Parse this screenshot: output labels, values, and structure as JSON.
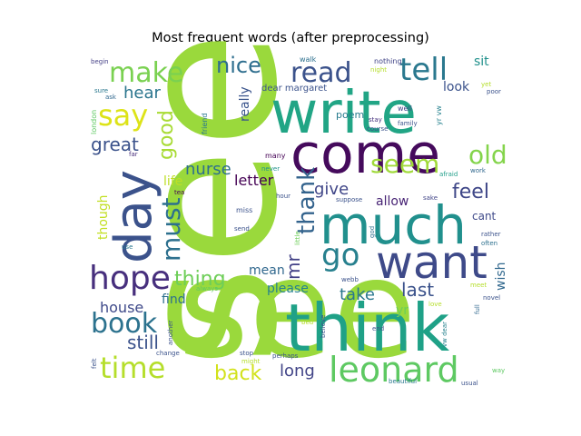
{
  "chart_data": {
    "type": "wordcloud",
    "title": "Most frequent words (after preprocessing)",
    "words": [
      {
        "text": "see",
        "color": "#9ad93c",
        "rot": -90
      },
      {
        "text": "see",
        "color": "#9ad93c",
        "rot": 0
      },
      {
        "text": "write",
        "color": "#21a585",
        "rot": 0
      },
      {
        "text": "think",
        "color": "#1fa187",
        "rot": 0
      },
      {
        "text": "come",
        "color": "#450a5c",
        "rot": 0
      },
      {
        "text": "much",
        "color": "#21908d",
        "rot": 0
      },
      {
        "text": "day",
        "color": "#3b528b",
        "rot": -90
      },
      {
        "text": "want",
        "color": "#3e4a89",
        "rot": 0
      },
      {
        "text": "leonard",
        "color": "#5ec962",
        "rot": 0
      },
      {
        "text": "hope",
        "color": "#472f7d",
        "rot": 0
      },
      {
        "text": "tell",
        "color": "#2a788e",
        "rot": 0
      },
      {
        "text": "read",
        "color": "#3b528b",
        "rot": 0
      },
      {
        "text": "make",
        "color": "#7ad151",
        "rot": 0
      },
      {
        "text": "say",
        "color": "#dde318",
        "rot": 0
      },
      {
        "text": "book",
        "color": "#2c728e",
        "rot": 0
      },
      {
        "text": "time",
        "color": "#b5de2b",
        "rot": 0
      },
      {
        "text": "go",
        "color": "#27808e",
        "rot": 0
      },
      {
        "text": "old",
        "color": "#84d44b",
        "rot": 0
      },
      {
        "text": "seem",
        "color": "#a0da39",
        "rot": 0
      },
      {
        "text": "thank",
        "color": "#33638d",
        "rot": -90
      },
      {
        "text": "must",
        "color": "#2d708e",
        "rot": -90
      },
      {
        "text": "nice",
        "color": "#2e6e8e",
        "rot": 0
      },
      {
        "text": "great",
        "color": "#3b528b",
        "rot": 0
      },
      {
        "text": "feel",
        "color": "#3f4788",
        "rot": 0
      },
      {
        "text": "good",
        "color": "#a8db34",
        "rot": -90
      },
      {
        "text": "hear",
        "color": "#2b758e",
        "rot": 0
      },
      {
        "text": "thing",
        "color": "#6ece58",
        "rot": 0
      },
      {
        "text": "nurse",
        "color": "#2e6f8e",
        "rot": 0
      },
      {
        "text": "give",
        "color": "#404688",
        "rot": 0
      },
      {
        "text": "still",
        "color": "#3b528b",
        "rot": 0
      },
      {
        "text": "back",
        "color": "#d2e21b",
        "rot": 0
      },
      {
        "text": "long",
        "color": "#414487",
        "rot": 0
      },
      {
        "text": "last",
        "color": "#3b528b",
        "rot": 0
      },
      {
        "text": "take",
        "color": "#2a778e",
        "rot": 0
      },
      {
        "text": "mr",
        "color": "#424086",
        "rot": -90
      },
      {
        "text": "letter",
        "color": "#440154",
        "rot": 0
      },
      {
        "text": "life",
        "color": "#bddf26",
        "rot": 0
      },
      {
        "text": "allow",
        "color": "#482475",
        "rot": 0
      },
      {
        "text": "house",
        "color": "#3e4989",
        "rot": 0
      },
      {
        "text": "mean",
        "color": "#31688e",
        "rot": 0
      },
      {
        "text": "please",
        "color": "#26828e",
        "rot": 0
      },
      {
        "text": "find",
        "color": "#2d708e",
        "rot": 0
      },
      {
        "text": "look",
        "color": "#3b528b",
        "rot": 0
      },
      {
        "text": "wish",
        "color": "#31688e",
        "rot": -90
      },
      {
        "text": "though",
        "color": "#c2df23",
        "rot": -90
      },
      {
        "text": "cant",
        "color": "#3e4989",
        "rot": 0
      },
      {
        "text": "poem",
        "color": "#287c8e",
        "rot": 0
      },
      {
        "text": "really",
        "color": "#3a548c",
        "rot": -90
      },
      {
        "text": "yr",
        "color": "#6ece58",
        "rot": 0
      },
      {
        "text": "sit",
        "color": "#21918c",
        "rot": 0
      },
      {
        "text": "dear margaret",
        "color": "#3b528b",
        "rot": 0
      },
      {
        "text": "friend",
        "color": "#2a788e",
        "rot": -90
      },
      {
        "text": "many",
        "color": "#440154",
        "rot": 0
      },
      {
        "text": "miss",
        "color": "#3b528b",
        "rot": 0
      },
      {
        "text": "well",
        "color": "#414487",
        "rot": 0
      },
      {
        "text": "london",
        "color": "#5ec962",
        "rot": -90
      },
      {
        "text": "yr vw",
        "color": "#26828e",
        "rot": -90
      },
      {
        "text": "walk",
        "color": "#2d708e",
        "rot": 0
      },
      {
        "text": "nothing",
        "color": "#414487",
        "rot": 0
      },
      {
        "text": "night",
        "color": "#b5de2b",
        "rot": 0
      },
      {
        "text": "poor",
        "color": "#3b528b",
        "rot": 0
      },
      {
        "text": "yet",
        "color": "#b5de2b",
        "rot": 0
      },
      {
        "text": "sure",
        "color": "#2a788e",
        "rot": 0
      },
      {
        "text": "ask",
        "color": "#31688e",
        "rot": 0
      },
      {
        "text": "begin",
        "color": "#433e85",
        "rot": 0
      },
      {
        "text": "course",
        "color": "#3b528b",
        "rot": 0
      },
      {
        "text": "stay",
        "color": "#46327e",
        "rot": 0
      },
      {
        "text": "family",
        "color": "#3b528b",
        "rot": 0
      },
      {
        "text": "far",
        "color": "#472d7b",
        "rot": 0
      },
      {
        "text": "never",
        "color": "#20928c",
        "rot": 0
      },
      {
        "text": "afraid",
        "color": "#1f9e89",
        "rot": 0
      },
      {
        "text": "work",
        "color": "#31688e",
        "rot": 0
      },
      {
        "text": "tea",
        "color": "#440154",
        "rot": 0
      },
      {
        "text": "hour",
        "color": "#3b528b",
        "rot": 0
      },
      {
        "text": "suppose",
        "color": "#3b528b",
        "rot": 0
      },
      {
        "text": "sake",
        "color": "#414487",
        "rot": 0
      },
      {
        "text": "rather",
        "color": "#3b528b",
        "rot": 0
      },
      {
        "text": "often",
        "color": "#2d708e",
        "rot": 0
      },
      {
        "text": "send",
        "color": "#3b528b",
        "rot": 0
      },
      {
        "text": "little",
        "color": "#6ece58",
        "rot": -90
      },
      {
        "text": "god",
        "color": "#2d708e",
        "rot": -90
      },
      {
        "text": "use",
        "color": "#2a788e",
        "rot": 0
      },
      {
        "text": "webb",
        "color": "#3b528b",
        "rot": 0
      },
      {
        "text": "meet",
        "color": "#b5de2b",
        "rot": 0
      },
      {
        "text": "novel",
        "color": "#3b528b",
        "rot": 0
      },
      {
        "text": "full",
        "color": "#31688e",
        "rot": -90
      },
      {
        "text": "always",
        "color": "#5ec962",
        "rot": 0
      },
      {
        "text": "love",
        "color": "#b5de2b",
        "rot": 0
      },
      {
        "text": "another",
        "color": "#3b528b",
        "rot": -90
      },
      {
        "text": "bed",
        "color": "#b5de2b",
        "rot": 0
      },
      {
        "text": "vw dear",
        "color": "#26828e",
        "rot": -90
      },
      {
        "text": "change",
        "color": "#3b528b",
        "rot": 0
      },
      {
        "text": "believe",
        "color": "#3b528b",
        "rot": -90
      },
      {
        "text": "stop",
        "color": "#3b528b",
        "rot": 0
      },
      {
        "text": "might",
        "color": "#b5de2b",
        "rot": 0
      },
      {
        "text": "perhaps",
        "color": "#3b528b",
        "rot": 0
      },
      {
        "text": "felt",
        "color": "#3b528b",
        "rot": -90
      },
      {
        "text": "beautiful",
        "color": "#2a788e",
        "rot": 0
      },
      {
        "text": "usual",
        "color": "#3b528b",
        "rot": 0
      },
      {
        "text": "way",
        "color": "#5ec962",
        "rot": 0
      },
      {
        "text": "end",
        "color": "#3b528b",
        "rot": 0
      }
    ]
  }
}
